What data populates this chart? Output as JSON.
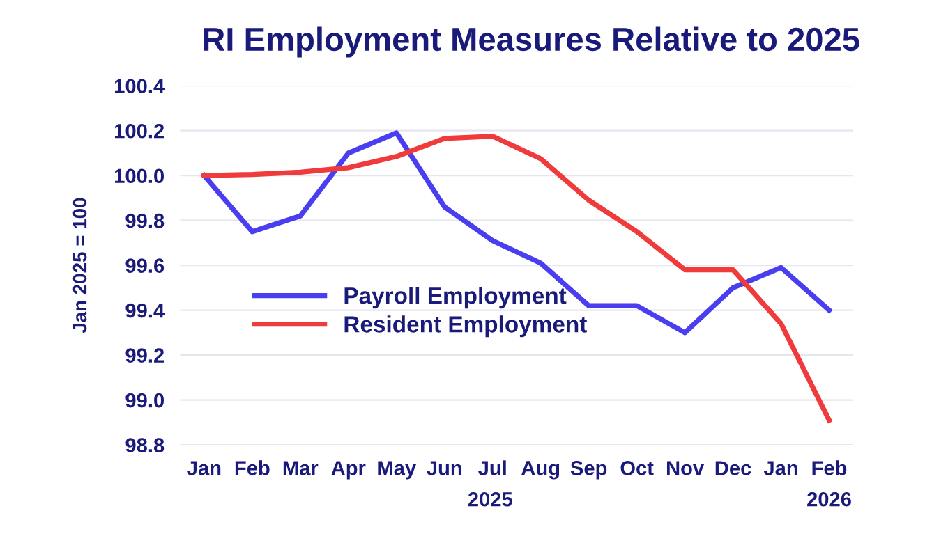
{
  "chart_data": {
    "type": "line",
    "title": "RI Employment Measures Relative to 2025",
    "ylabel": "Jan 2025 = 100",
    "categories": [
      "Jan",
      "Feb",
      "Mar",
      "Apr",
      "May",
      "Jun",
      "Jul",
      "Aug",
      "Sep",
      "Oct",
      "Nov",
      "Dec",
      "Jan",
      "Feb"
    ],
    "series": [
      {
        "name": "Payroll Employment",
        "color": "#4a3ff0",
        "values": [
          100.0,
          99.75,
          99.82,
          100.1,
          100.19,
          99.86,
          99.71,
          99.61,
          99.42,
          99.42,
          99.3,
          99.5,
          99.59,
          99.4
        ]
      },
      {
        "name": "Resident Employment",
        "color": "#ef3b3b",
        "values": [
          100.0,
          100.005,
          100.015,
          100.035,
          100.085,
          100.165,
          100.175,
          100.075,
          99.89,
          99.75,
          99.58,
          99.58,
          99.34,
          98.91
        ]
      }
    ],
    "ylim": [
      98.8,
      100.4
    ],
    "yticks": [
      98.8,
      {
        "value": 99.0,
        "label": "99.0"
      },
      99.2,
      99.4,
      99.6,
      99.8,
      {
        "value": 100.0,
        "label": "100.0"
      },
      100.2,
      100.4
    ],
    "grid": "y",
    "legend": "left",
    "marker": "none",
    "line_style": "solid",
    "annotations": [
      "2025",
      "2026"
    ]
  }
}
